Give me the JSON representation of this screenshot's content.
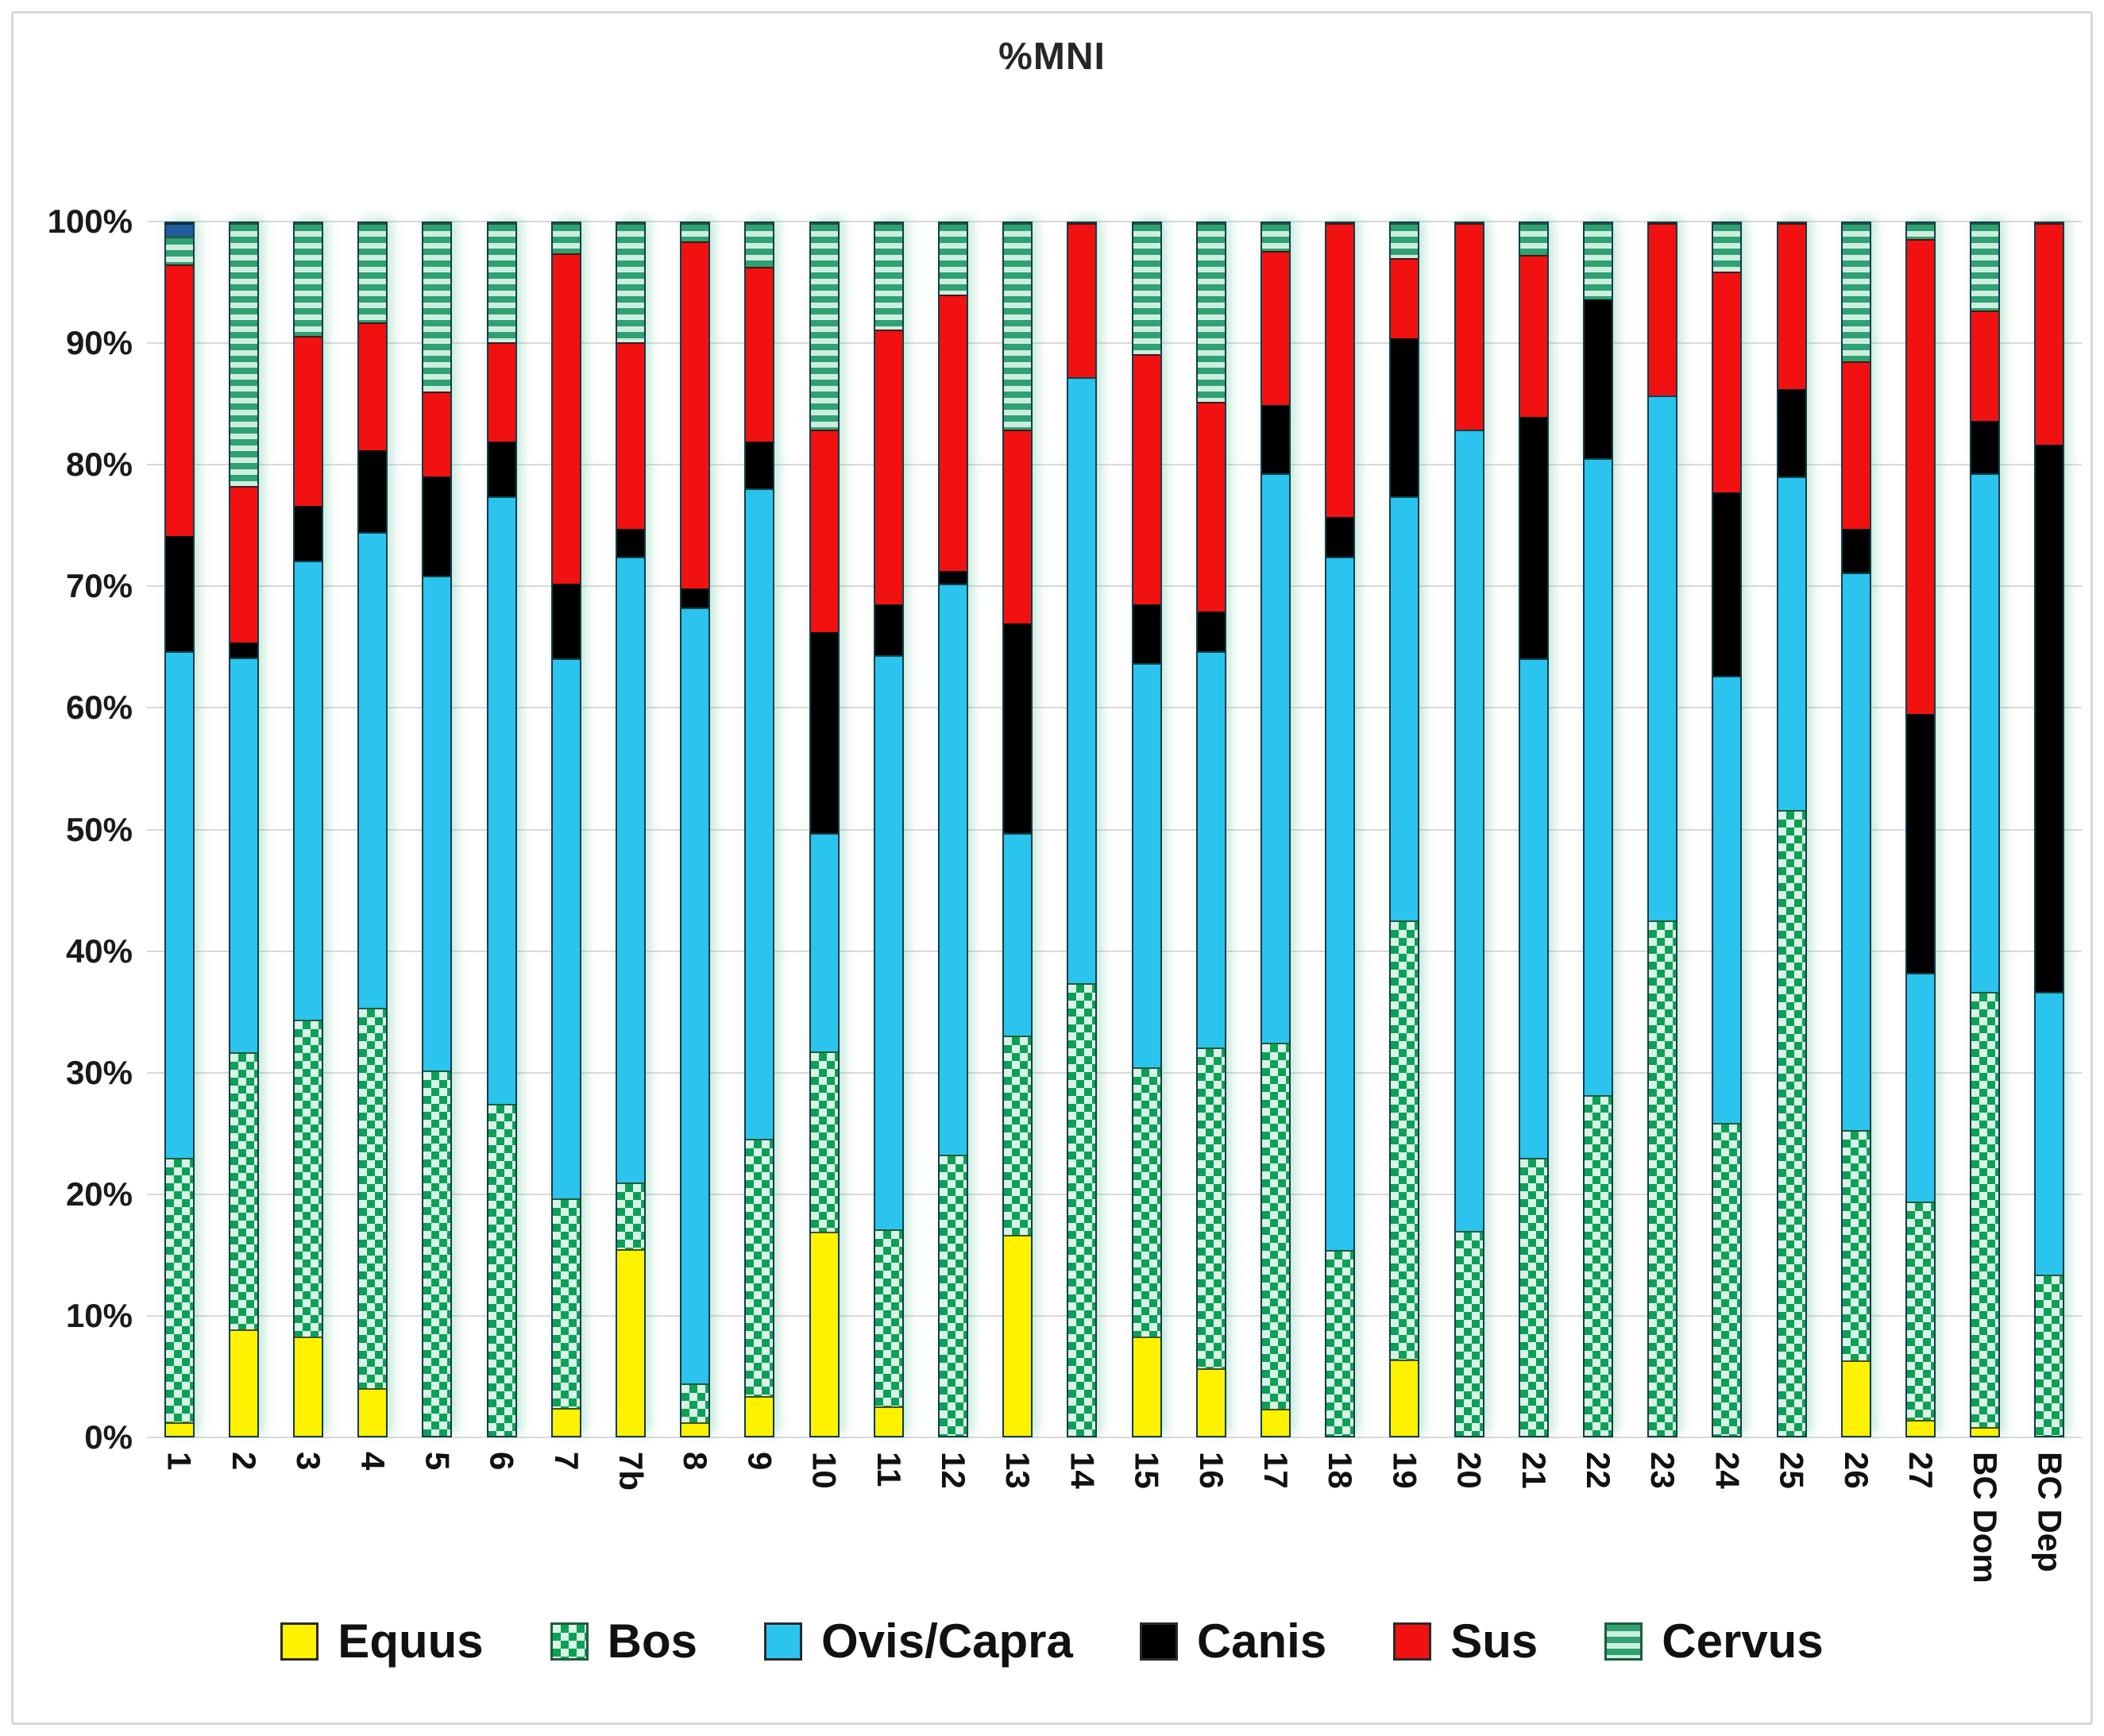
{
  "chart_data": {
    "type": "bar",
    "stacked": true,
    "orientation": "vertical",
    "title": "%MNI",
    "xlabel": "",
    "ylabel": "",
    "ylim": [
      0,
      100
    ],
    "grid": true,
    "legend_position": "bottom",
    "y_tick_labels": [
      "0%",
      "10%",
      "20%",
      "30%",
      "40%",
      "50%",
      "60%",
      "70%",
      "80%",
      "90%",
      "100%"
    ],
    "categories": [
      "1",
      "2",
      "3",
      "4",
      "5",
      "6",
      "7",
      "7b",
      "8",
      "9",
      "10",
      "11",
      "12",
      "13",
      "14",
      "15",
      "16",
      "17",
      "18",
      "19",
      "20",
      "21",
      "22",
      "23",
      "24",
      "25",
      "26",
      "27",
      "BC Dom",
      "BC Dep"
    ],
    "series": [
      {
        "name": "Equus",
        "pattern": "solid",
        "color": "#FFF200",
        "border": "#7a7a00",
        "in_legend": true,
        "values": [
          1.1,
          8.8,
          8.2,
          3.9,
          0,
          0,
          2.3,
          15.4,
          1.1,
          3.3,
          16.8,
          2.4,
          0,
          16.6,
          0,
          8.2,
          5.6,
          2.2,
          0,
          6.3,
          0,
          0,
          0,
          0,
          0,
          0,
          6.2,
          1.3,
          0.7,
          0
        ]
      },
      {
        "name": "Bos",
        "pattern": "checker",
        "color": "#0CA057",
        "color2": "#D9F4E6",
        "border": "#1E5C38",
        "in_legend": true,
        "values": [
          21.8,
          22.8,
          26.1,
          31.4,
          30.1,
          27.4,
          17.3,
          5.5,
          3.2,
          21.2,
          14.9,
          14.6,
          23.2,
          16.4,
          37.3,
          22.2,
          26.4,
          30.2,
          15.3,
          36.2,
          16.9,
          22.9,
          28.1,
          42.5,
          25.8,
          51.6,
          19.0,
          18.0,
          35.9,
          13.3
        ]
      },
      {
        "name": "Ovis/Capra",
        "pattern": "solid",
        "color": "#2BC4EE",
        "border": "#155E77",
        "in_legend": true,
        "values": [
          41.8,
          32.6,
          37.9,
          39.2,
          40.8,
          50.1,
          44.5,
          51.6,
          64.0,
          53.6,
          18.0,
          47.4,
          47.1,
          16.7,
          50.0,
          33.3,
          32.7,
          47.0,
          57.2,
          35.0,
          66.1,
          41.2,
          52.5,
          43.3,
          36.9,
          27.5,
          46.0,
          18.9,
          42.8,
          23.3
        ]
      },
      {
        "name": "Canis",
        "pattern": "solid",
        "color": "#000000",
        "border": "#000000",
        "in_legend": true,
        "values": [
          9.5,
          1.2,
          4.5,
          6.8,
          8.2,
          4.5,
          6.2,
          2.3,
          1.6,
          3.9,
          16.6,
          4.2,
          1.0,
          17.3,
          0,
          4.9,
          3.3,
          5.6,
          3.3,
          13.0,
          0,
          19.9,
          13.1,
          0,
          15.1,
          7.2,
          3.6,
          21.3,
          4.3,
          45.1
        ]
      },
      {
        "name": "Sus",
        "pattern": "solid",
        "color": "#F21111",
        "border": "#7a0a0a",
        "in_legend": true,
        "values": [
          22.4,
          12.9,
          14.0,
          10.5,
          7.0,
          8.2,
          27.2,
          15.4,
          28.6,
          14.4,
          16.7,
          22.6,
          22.8,
          16.0,
          12.7,
          20.6,
          17.3,
          12.7,
          24.2,
          6.6,
          17.0,
          13.4,
          0,
          14.2,
          18.2,
          13.7,
          13.8,
          39.2,
          9.1,
          18.3
        ]
      },
      {
        "name": "Cervus",
        "pattern": "hstripes",
        "color": "#2FA172",
        "color2": "#CDEEDF",
        "border": "#1E5C38",
        "in_legend": true,
        "values": [
          2.3,
          21.7,
          9.3,
          8.2,
          13.9,
          9.8,
          2.5,
          9.8,
          1.5,
          3.6,
          17.0,
          8.8,
          5.9,
          17.0,
          0,
          10.8,
          14.7,
          2.3,
          0,
          2.9,
          0,
          2.6,
          6.3,
          0,
          4.0,
          0,
          11.4,
          1.3,
          7.2,
          0
        ]
      },
      {
        "name": "",
        "pattern": "solid",
        "color": "#1F5C99",
        "border": "#123a63",
        "in_legend": false,
        "values": [
          1.1,
          0,
          0,
          0,
          0,
          0,
          0,
          0,
          0,
          0,
          0,
          0,
          0,
          0,
          0,
          0,
          0,
          0,
          0,
          0,
          0,
          0,
          0,
          0,
          0,
          0,
          0,
          0,
          0,
          0
        ]
      }
    ]
  }
}
